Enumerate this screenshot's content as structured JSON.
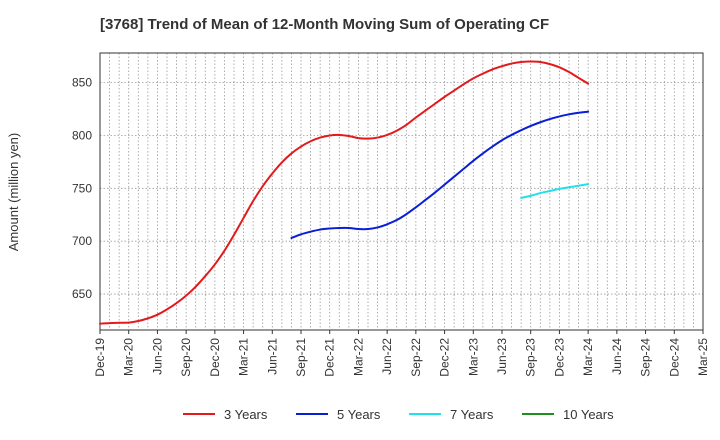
{
  "chart_data": {
    "type": "line",
    "title": "[3768]  Trend of Mean of 12-Month Moving Sum of Operating CF",
    "xlabel": "",
    "ylabel": "Amount (million yen)",
    "ylim": [
      616,
      878
    ],
    "yticks": [
      650,
      700,
      750,
      800,
      850
    ],
    "grid": true,
    "legend_position": "bottom",
    "x_index_range": [
      0,
      63
    ],
    "categories": [
      "Dec-19",
      "Mar-20",
      "Jun-20",
      "Sep-20",
      "Dec-20",
      "Mar-21",
      "Jun-21",
      "Sep-21",
      "Dec-21",
      "Mar-22",
      "Jun-22",
      "Sep-22",
      "Dec-22",
      "Mar-23",
      "Jun-23",
      "Sep-23",
      "Dec-23",
      "Mar-24",
      "Jun-24",
      "Sep-24",
      "Dec-24",
      "Mar-25"
    ],
    "category_index": [
      0,
      3,
      6,
      9,
      12,
      15,
      18,
      21,
      24,
      27,
      30,
      33,
      36,
      39,
      42,
      45,
      48,
      51,
      54,
      57,
      60,
      63
    ],
    "series": [
      {
        "name": "3 Years",
        "color": "#e31a1c",
        "x": [
          0,
          1,
          2,
          3,
          4,
          5,
          6,
          7,
          8,
          9,
          10,
          11,
          12,
          13,
          14,
          15,
          16,
          17,
          18,
          19,
          20,
          21,
          22,
          23,
          24,
          25,
          26,
          27,
          28,
          29,
          30,
          31,
          32,
          33,
          34,
          35,
          36,
          37,
          38,
          39,
          40,
          41,
          42,
          43,
          44,
          45,
          46,
          47,
          48,
          49,
          50,
          51
        ],
        "values": [
          622,
          622.5,
          622.8,
          623,
          624.5,
          627,
          630.5,
          635.5,
          641.5,
          648.5,
          657,
          667,
          678,
          691,
          706,
          722,
          738,
          752,
          764,
          774.5,
          783,
          789.5,
          794.5,
          798,
          800,
          800.5,
          799.5,
          797.5,
          797,
          798,
          800.5,
          804.5,
          810,
          817,
          823.5,
          830,
          836.5,
          842.5,
          848.5,
          854,
          858.5,
          862.5,
          865.5,
          868,
          869.5,
          870,
          869.5,
          867.5,
          864.5,
          860,
          854.5,
          849
        ]
      },
      {
        "name": "5 Years",
        "color": "#0a1ed6",
        "x": [
          20,
          21,
          22,
          23,
          24,
          25,
          26,
          27,
          28,
          29,
          30,
          31,
          32,
          33,
          34,
          35,
          36,
          37,
          38,
          39,
          40,
          41,
          42,
          43,
          44,
          45,
          46,
          47,
          48,
          49,
          50,
          51
        ],
        "values": [
          703,
          706.5,
          709,
          711,
          712,
          712.5,
          712.5,
          711.5,
          711.5,
          713,
          716,
          720,
          725.5,
          732,
          739,
          746,
          753.5,
          761,
          768.5,
          776,
          783,
          789.5,
          795.5,
          800.5,
          805,
          809,
          812.5,
          815.5,
          818,
          820,
          821.5,
          822.5
        ]
      },
      {
        "name": "7 Years",
        "color": "#22e0ea",
        "x": [
          44,
          45,
          46,
          47,
          48,
          49,
          50,
          51
        ],
        "values": [
          741,
          743,
          745.5,
          747.5,
          749.5,
          751,
          752.5,
          754
        ]
      },
      {
        "name": "10 Years",
        "color": "#1f8f1f",
        "x": [],
        "values": []
      }
    ]
  }
}
